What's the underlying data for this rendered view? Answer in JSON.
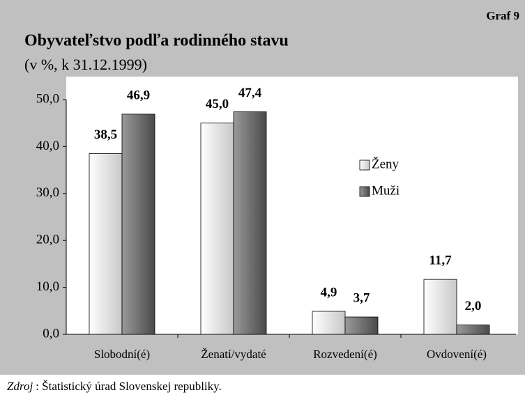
{
  "chart_data": {
    "type": "bar",
    "title": "Obyvateľstvo podľa rodinného stavu",
    "subtitle": "(v %, k 31.12.1999)",
    "graph_label": "Graf 9",
    "categories": [
      "Slobodní(é)",
      "Ženatí/vydaté",
      "Rozvedení(é)",
      "Ovdovení(é)"
    ],
    "series": [
      {
        "name": "Ženy",
        "color": "#e8e8e8",
        "values": [
          38.5,
          45.0,
          4.9,
          11.7
        ],
        "value_labels": [
          "38,5",
          "45,0",
          "4,9",
          "11,7"
        ]
      },
      {
        "name": "Muži",
        "color": "#707070",
        "values": [
          46.9,
          47.4,
          3.7,
          2.0
        ],
        "value_labels": [
          "46,9",
          "47,4",
          "3,7",
          "2,0"
        ]
      }
    ],
    "ylim": [
      0,
      50
    ],
    "yticks": [
      {
        "value": 0,
        "label": "0,0"
      },
      {
        "value": 10,
        "label": "10,0"
      },
      {
        "value": 20,
        "label": "20,0"
      },
      {
        "value": 30,
        "label": "30,0"
      },
      {
        "value": 40,
        "label": "40,0"
      },
      {
        "value": 50,
        "label": "50,0"
      }
    ],
    "legend": "right",
    "source_prefix": "Zdroj",
    "source": ": Štatistický úrad Slovenskej republiky."
  }
}
